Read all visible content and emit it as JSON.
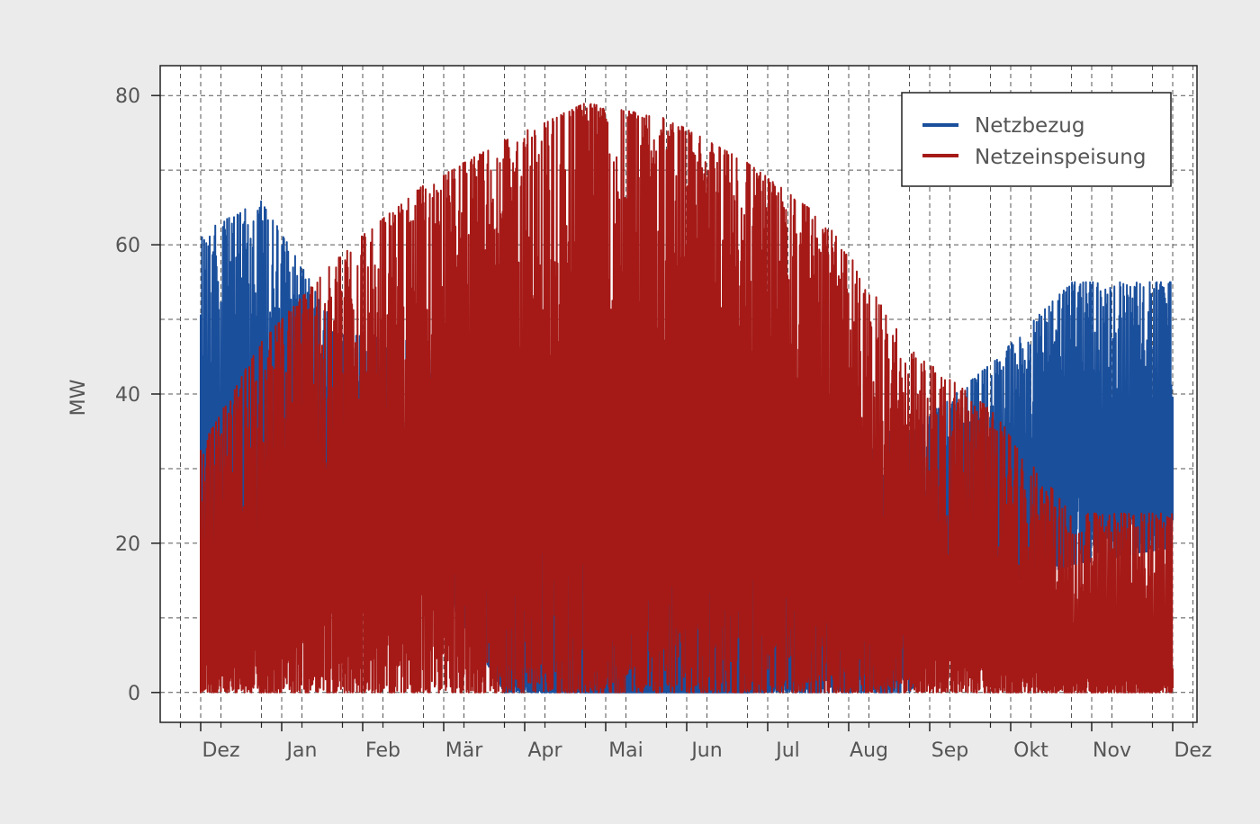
{
  "chart_data": {
    "type": "line",
    "title": "",
    "xlabel": "",
    "ylabel": "MW",
    "ylim": [
      -4,
      84
    ],
    "y_ticks": [
      0,
      20,
      40,
      60,
      80
    ],
    "x_range_months": [
      11.5,
      24.3
    ],
    "x_tick_labels": [
      "Dez",
      "Jan",
      "Feb",
      "Mär",
      "Apr",
      "Mai",
      "Jun",
      "Jul",
      "Aug",
      "Sep",
      "Okt",
      "Nov",
      "Dez"
    ],
    "grid": true,
    "legend_position": "top-right",
    "series": [
      {
        "name": "Netzbezug",
        "color": "#1a4f9c",
        "month_labels": [
          "Dez",
          "Jan",
          "Feb",
          "Mär",
          "Apr",
          "Mai",
          "Jun",
          "Jul",
          "Aug",
          "Sep",
          "Okt",
          "Nov",
          "Dez"
        ],
        "min_mw": [
          18,
          19,
          19,
          18,
          0,
          0,
          0,
          0,
          0,
          0,
          14,
          17,
          19
        ],
        "max_mw": [
          60,
          66,
          48,
          47,
          36,
          32,
          31,
          22,
          36,
          35,
          44,
          55,
          55
        ],
        "mean_mw": [
          36,
          38,
          26,
          20,
          4,
          0,
          0,
          0,
          6,
          10,
          30,
          36,
          34
        ]
      },
      {
        "name": "Netzeinspeisung",
        "color": "#a51a17",
        "month_labels": [
          "Dez",
          "Jan",
          "Feb",
          "Mär",
          "Apr",
          "Mai",
          "Jun",
          "Jul",
          "Aug",
          "Sep",
          "Okt",
          "Nov",
          "Dez"
        ],
        "min_mw": [
          0,
          0,
          0,
          0,
          0,
          0,
          0,
          0,
          0,
          0,
          0,
          0,
          0
        ],
        "max_mw": [
          28,
          47,
          59,
          68,
          74,
          79,
          77,
          71,
          63,
          46,
          38,
          24,
          24
        ],
        "mean_mw": [
          8,
          14,
          28,
          34,
          40,
          44,
          44,
          42,
          32,
          18,
          8,
          4,
          4
        ]
      }
    ]
  },
  "colors": {
    "background": "#ebebeb",
    "plot_background": "#ffffff",
    "netzbezug": "#1a4f9c",
    "netzeinspeisung": "#a51a17"
  }
}
